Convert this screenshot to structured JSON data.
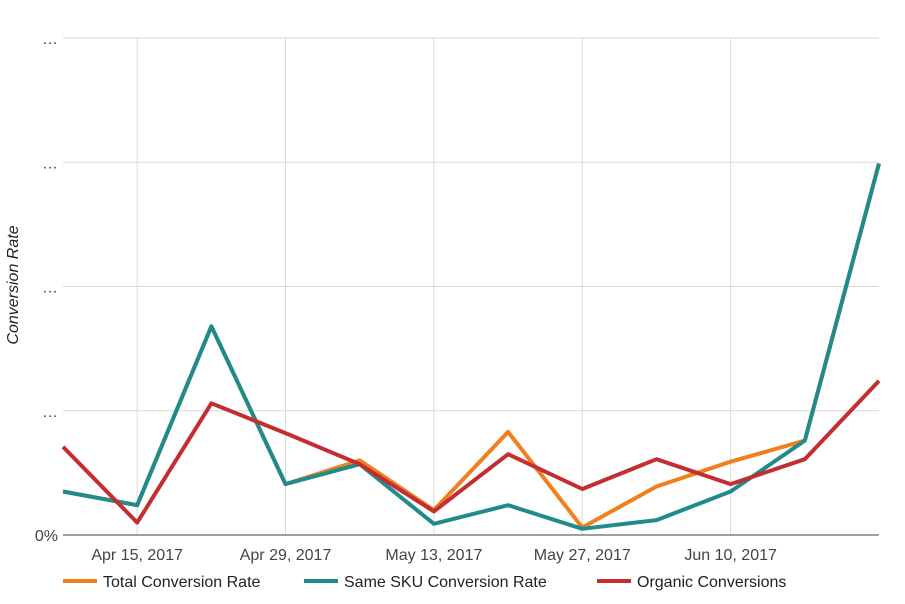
{
  "chart_data": {
    "type": "line",
    "title": "",
    "xlabel": "",
    "ylabel": "Conversion Rate",
    "x": [
      "2017-04-08",
      "2017-04-15",
      "2017-04-22",
      "2017-04-29",
      "2017-05-06",
      "2017-05-13",
      "2017-05-20",
      "2017-05-27",
      "2017-06-03",
      "2017-06-10",
      "2017-06-17",
      "2017-06-24"
    ],
    "x_ticks": [
      "Apr 15, 2017",
      "Apr 29, 2017",
      "May 13, 2017",
      "May 27, 2017",
      "Jun 10, 2017"
    ],
    "x_tick_values": [
      "2017-04-15",
      "2017-04-29",
      "2017-05-13",
      "2017-05-27",
      "2017-06-10"
    ],
    "xlim": [
      "2017-04-08",
      "2017-06-24"
    ],
    "y_ticks": [
      "0%",
      "…",
      "…",
      "…",
      "…"
    ],
    "y_tick_values": [
      0,
      1,
      2,
      3,
      4
    ],
    "ylim": [
      0,
      4
    ],
    "grid": true,
    "legend_position": "bottom",
    "series": [
      {
        "name": "Total Conversion Rate",
        "color": "#f07f1d",
        "values": [
          0.35,
          0.24,
          1.68,
          0.41,
          0.6,
          0.2,
          0.83,
          0.06,
          0.39,
          0.59,
          0.76,
          2.99
        ]
      },
      {
        "name": "Same SKU Conversion Rate",
        "color": "#1f8b8b",
        "values": [
          0.35,
          0.24,
          1.68,
          0.41,
          0.57,
          0.09,
          0.24,
          0.05,
          0.12,
          0.35,
          0.76,
          2.99
        ]
      },
      {
        "name": "Organic Conversions",
        "color": "#c42e32",
        "values": [
          0.71,
          0.1,
          1.06,
          0.82,
          0.57,
          0.19,
          0.65,
          0.37,
          0.61,
          0.41,
          0.61,
          1.24
        ]
      }
    ]
  }
}
